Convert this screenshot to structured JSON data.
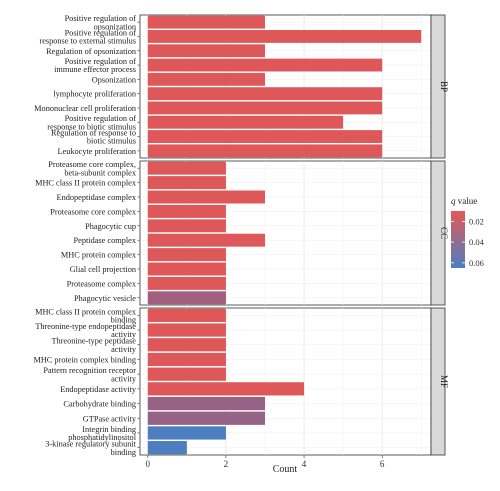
{
  "chart_data": {
    "type": "bar",
    "orientation": "horizontal",
    "xlabel": "Count",
    "xlim": [
      -0.2,
      7.25
    ],
    "xticks": [
      0,
      2,
      4,
      6
    ],
    "grid": true,
    "legend": {
      "title_prefix": "q",
      "title_suffix": " value",
      "ticks": [
        "0.02",
        "0.04",
        "0.06"
      ],
      "tick_values": [
        0.02,
        0.04,
        0.06
      ],
      "range": [
        0.01,
        0.065
      ],
      "low_color": "#e45756",
      "high_color": "#4a7fc1",
      "placement": "right"
    },
    "facets": [
      {
        "name": "BP",
        "bars": [
          {
            "label": [
              "Positive regulation of",
              "opsonization"
            ],
            "count": 3,
            "q": 0.012
          },
          {
            "label": [
              "Positive regulation of",
              "response to external stimulus"
            ],
            "count": 7,
            "q": 0.012
          },
          {
            "label": [
              "Regulation of opsonization"
            ],
            "count": 3,
            "q": 0.012
          },
          {
            "label": [
              "Positive regulation of",
              "immune effector process"
            ],
            "count": 6,
            "q": 0.012
          },
          {
            "label": [
              "Opsonization"
            ],
            "count": 3,
            "q": 0.012
          },
          {
            "label": [
              "lymphocyte proliferation"
            ],
            "count": 6,
            "q": 0.012
          },
          {
            "label": [
              "Mononuclear cell proliferation"
            ],
            "count": 6,
            "q": 0.012
          },
          {
            "label": [
              "Positive regulation of",
              "response to biotic stimulus"
            ],
            "count": 5,
            "q": 0.012
          },
          {
            "label": [
              "Regulation of response to",
              "biotic stimulus"
            ],
            "count": 6,
            "q": 0.012
          },
          {
            "label": [
              "Leukocyte proliferation"
            ],
            "count": 6,
            "q": 0.012
          }
        ]
      },
      {
        "name": "CC",
        "bars": [
          {
            "label": [
              "Proteasome core complex,",
              "beta-subunit complex"
            ],
            "count": 2,
            "q": 0.012
          },
          {
            "label": [
              "MHC class II protein complex"
            ],
            "count": 2,
            "q": 0.012
          },
          {
            "label": [
              "Endopeptidase complex"
            ],
            "count": 3,
            "q": 0.012
          },
          {
            "label": [
              "Proteasome core complex"
            ],
            "count": 2,
            "q": 0.012
          },
          {
            "label": [
              "Phagocytic cup"
            ],
            "count": 2,
            "q": 0.012
          },
          {
            "label": [
              "Peptidase complex"
            ],
            "count": 3,
            "q": 0.012
          },
          {
            "label": [
              "MHC protein complex"
            ],
            "count": 2,
            "q": 0.012
          },
          {
            "label": [
              "Glial cell projection"
            ],
            "count": 2,
            "q": 0.012
          },
          {
            "label": [
              "Proteasome complex"
            ],
            "count": 2,
            "q": 0.012
          },
          {
            "label": [
              "Phagocytic vesicle"
            ],
            "count": 2,
            "q": 0.036
          }
        ]
      },
      {
        "name": "MF",
        "bars": [
          {
            "label": [
              "MHC class II protein complex",
              "binding"
            ],
            "count": 2,
            "q": 0.012
          },
          {
            "label": [
              "Threonine-type endopeptidase",
              "activity"
            ],
            "count": 2,
            "q": 0.012
          },
          {
            "label": [
              "Threonine-type peptidase",
              "activity"
            ],
            "count": 2,
            "q": 0.012
          },
          {
            "label": [
              "MHC protein complex binding"
            ],
            "count": 2,
            "q": 0.012
          },
          {
            "label": [
              "Pattern recognition receptor",
              "activity"
            ],
            "count": 2,
            "q": 0.012
          },
          {
            "label": [
              "Endopeptidase activity"
            ],
            "count": 4,
            "q": 0.012
          },
          {
            "label": [
              "Carbohydrate binding"
            ],
            "count": 3,
            "q": 0.04
          },
          {
            "label": [
              "GTPase activity"
            ],
            "count": 3,
            "q": 0.04
          },
          {
            "label": [
              "Integrin binding",
              "phosphatidylinositol"
            ],
            "count": 2,
            "q": 0.064
          },
          {
            "label": [
              "3-kinase regulatory subunit",
              "binding"
            ],
            "count": 1,
            "q": 0.064
          }
        ]
      }
    ]
  }
}
